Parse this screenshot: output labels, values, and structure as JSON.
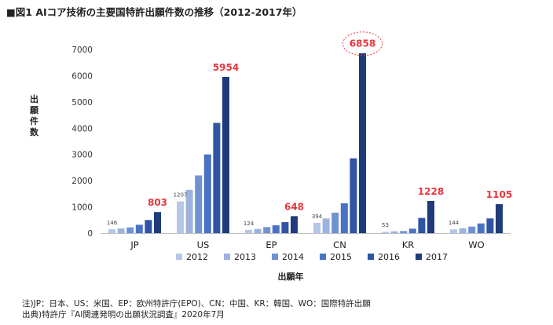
{
  "chart_data": {
    "type": "bar",
    "title": "■図1 AIコア技術の主要国特許出願件数の推移（2012-2017年）",
    "xlabel": "出願年",
    "ylabel": "出願件数",
    "ylim": [
      0,
      7000
    ],
    "yticks": [
      0,
      1000,
      2000,
      3000,
      4000,
      5000,
      6000,
      7000
    ],
    "grid": false,
    "legend_position": "bottom",
    "categories": [
      "JP",
      "US",
      "EP",
      "CN",
      "KR",
      "WO"
    ],
    "series": [
      {
        "name": "2012",
        "color": "#b4c7e7",
        "values": [
          146,
          1207,
          124,
          394,
          53,
          144
        ]
      },
      {
        "name": "2013",
        "color": "#9db3df",
        "values": [
          180,
          1650,
          160,
          560,
          70,
          190
        ]
      },
      {
        "name": "2014",
        "color": "#6f92d3",
        "values": [
          220,
          2200,
          230,
          780,
          80,
          250
        ]
      },
      {
        "name": "2015",
        "color": "#4a72c4",
        "values": [
          320,
          3000,
          300,
          1140,
          170,
          370
        ]
      },
      {
        "name": "2016",
        "color": "#2f54a3",
        "values": [
          500,
          4200,
          420,
          2850,
          580,
          560
        ]
      },
      {
        "name": "2017",
        "color": "#1f3b7a",
        "values": [
          803,
          5954,
          648,
          6858,
          1228,
          1105
        ]
      }
    ],
    "data_labels": {
      "2012": [
        "146",
        "1207",
        "124",
        "394",
        "53",
        "144"
      ],
      "2017": [
        "803",
        "5954",
        "648",
        "6858",
        "1228",
        "1105"
      ]
    },
    "highlight_label_color": "#e8363d",
    "highlight": {
      "category": "CN",
      "series": "2017",
      "style": "dashed-red-ellipse"
    }
  },
  "notes": [
    "注)JP：日本、US：米国、EP：欧州特許庁(EPO)、CN：中国、KR：韓国、WO：国際特許出願",
    "出典)特許庁『AI関連発明の出願状況調査』2020年7月"
  ]
}
